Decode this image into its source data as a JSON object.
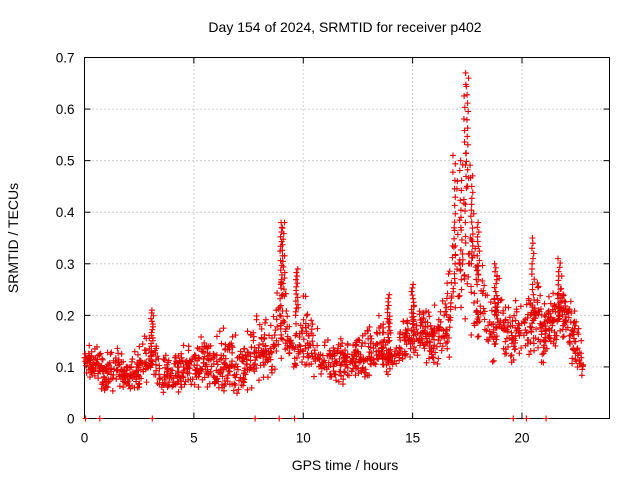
{
  "chart_data": {
    "type": "scatter",
    "title": "Day 154 of 2024, SRMTID for receiver p402",
    "xlabel": "GPS time / hours",
    "ylabel": "SRMTID / TECUs",
    "xlim": [
      0,
      24
    ],
    "ylim": [
      0,
      0.7
    ],
    "xticks": [
      0,
      5,
      10,
      15,
      20
    ],
    "yticks": [
      0,
      0.1,
      0.2,
      0.3,
      0.4,
      0.5,
      0.6,
      0.7
    ],
    "xtick_labels": [
      "0",
      "5",
      "10",
      "15",
      "20"
    ],
    "ytick_labels": [
      "0",
      "0.1",
      "0.2",
      "0.3",
      "0.4",
      "0.5",
      "0.6",
      "0.7"
    ],
    "grid": true,
    "marker": "+",
    "color": "#e60000",
    "series": [
      {
        "name": "SRMTID",
        "envelope": [
          [
            0.0,
            0.08,
            0.17
          ],
          [
            0.5,
            0.06,
            0.16
          ],
          [
            1.0,
            0.04,
            0.13
          ],
          [
            1.5,
            0.05,
            0.16
          ],
          [
            2.0,
            0.04,
            0.14
          ],
          [
            2.5,
            0.05,
            0.15
          ],
          [
            3.0,
            0.06,
            0.21
          ],
          [
            3.5,
            0.04,
            0.14
          ],
          [
            4.0,
            0.04,
            0.15
          ],
          [
            4.5,
            0.04,
            0.16
          ],
          [
            5.0,
            0.05,
            0.16
          ],
          [
            5.5,
            0.05,
            0.19
          ],
          [
            6.0,
            0.03,
            0.18
          ],
          [
            6.5,
            0.03,
            0.2
          ],
          [
            7.0,
            0.02,
            0.18
          ],
          [
            7.5,
            0.03,
            0.21
          ],
          [
            8.0,
            0.05,
            0.24
          ],
          [
            8.5,
            0.06,
            0.2
          ],
          [
            9.0,
            0.08,
            0.38
          ],
          [
            9.5,
            0.07,
            0.2
          ],
          [
            10.0,
            0.06,
            0.29
          ],
          [
            10.5,
            0.05,
            0.22
          ],
          [
            11.0,
            0.06,
            0.18
          ],
          [
            11.5,
            0.04,
            0.18
          ],
          [
            12.0,
            0.06,
            0.17
          ],
          [
            12.5,
            0.07,
            0.18
          ],
          [
            13.0,
            0.07,
            0.19
          ],
          [
            13.5,
            0.07,
            0.24
          ],
          [
            14.0,
            0.08,
            0.19
          ],
          [
            14.5,
            0.09,
            0.21
          ],
          [
            15.0,
            0.1,
            0.26
          ],
          [
            15.5,
            0.11,
            0.24
          ],
          [
            16.0,
            0.08,
            0.23
          ],
          [
            16.5,
            0.1,
            0.26
          ],
          [
            17.0,
            0.14,
            0.51
          ],
          [
            17.5,
            0.1,
            0.67
          ],
          [
            18.0,
            0.12,
            0.38
          ],
          [
            18.5,
            0.09,
            0.29
          ],
          [
            19.0,
            0.11,
            0.3
          ],
          [
            19.5,
            0.09,
            0.24
          ],
          [
            20.0,
            0.12,
            0.25
          ],
          [
            20.5,
            0.08,
            0.35
          ],
          [
            21.0,
            0.1,
            0.24
          ],
          [
            21.5,
            0.12,
            0.31
          ],
          [
            22.0,
            0.12,
            0.3
          ],
          [
            22.5,
            0.07,
            0.23
          ],
          [
            22.8,
            0.07,
            0.13
          ]
        ],
        "spikes": [
          [
            3.1,
            0.14,
            0.21
          ],
          [
            9.0,
            0.26,
            0.38
          ],
          [
            9.1,
            0.24,
            0.38
          ],
          [
            9.7,
            0.2,
            0.29
          ],
          [
            13.9,
            0.15,
            0.24
          ],
          [
            15.0,
            0.17,
            0.26
          ],
          [
            16.9,
            0.3,
            0.51
          ],
          [
            17.2,
            0.25,
            0.5
          ],
          [
            17.4,
            0.38,
            0.67
          ],
          [
            17.5,
            0.45,
            0.66
          ],
          [
            17.7,
            0.3,
            0.45
          ],
          [
            18.0,
            0.26,
            0.38
          ],
          [
            18.8,
            0.2,
            0.3
          ],
          [
            20.5,
            0.22,
            0.35
          ],
          [
            21.7,
            0.2,
            0.31
          ]
        ],
        "zero_points": [
          0.05,
          0.7,
          3.1,
          7.8,
          8.9,
          9.6,
          19.6,
          20.2,
          21.1
        ]
      }
    ]
  }
}
